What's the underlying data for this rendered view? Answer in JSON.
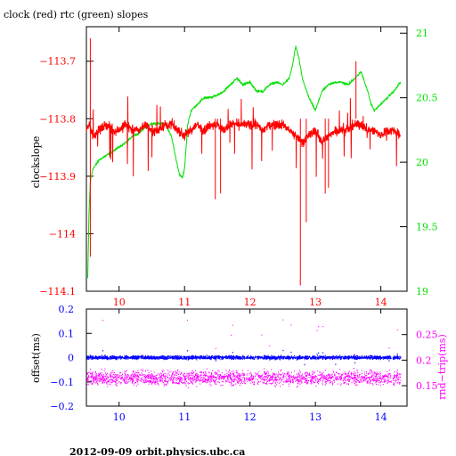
{
  "title": "clock (red) rtc (green) slopes",
  "footer": "2012-09-09  orbit.physics.ubc.ca",
  "colors": {
    "clock": "#ff0000",
    "rtc": "#00e000",
    "offset": "#0000ff",
    "rtt": "#ff00ff",
    "frame": "#000000"
  },
  "chart_data": [
    {
      "type": "line",
      "title": "clock (red) rtc (green) slopes",
      "ylabel": "clockslope",
      "xlim": [
        9.5,
        14.4
      ],
      "ylim": [
        -114.1,
        -113.64
      ],
      "y2lim": [
        19.0,
        21.05
      ],
      "x_ticks": [
        "10",
        "11",
        "12",
        "13",
        "14"
      ],
      "y_ticks": [
        "-113.7",
        "-113.8",
        "-113.9",
        "-114",
        "-114.1"
      ],
      "y2_ticks": [
        "21",
        "20.5",
        "20",
        "19.5",
        "19"
      ],
      "series": [
        {
          "name": "clock",
          "axis": "left",
          "x": [
            9.5,
            9.55,
            9.6,
            9.7,
            9.8,
            9.9,
            10.0,
            10.1,
            10.2,
            10.3,
            10.4,
            10.5,
            10.6,
            10.7,
            10.8,
            10.9,
            11.0,
            11.1,
            11.2,
            11.3,
            11.4,
            11.5,
            11.6,
            11.7,
            11.8,
            11.9,
            12.0,
            12.1,
            12.2,
            12.3,
            12.4,
            12.5,
            12.6,
            12.7,
            12.8,
            12.9,
            13.0,
            13.1,
            13.2,
            13.3,
            13.4,
            13.5,
            13.6,
            13.7,
            13.8,
            13.9,
            14.0,
            14.1,
            14.2,
            14.3
          ],
          "y": [
            -113.82,
            -113.81,
            -113.83,
            -113.82,
            -113.81,
            -113.82,
            -113.82,
            -113.81,
            -113.82,
            -113.82,
            -113.81,
            -113.82,
            -113.82,
            -113.81,
            -113.81,
            -113.82,
            -113.83,
            -113.82,
            -113.81,
            -113.82,
            -113.81,
            -113.81,
            -113.82,
            -113.81,
            -113.81,
            -113.81,
            -113.81,
            -113.81,
            -113.82,
            -113.81,
            -113.81,
            -113.81,
            -113.82,
            -113.83,
            -113.84,
            -113.83,
            -113.82,
            -113.84,
            -113.83,
            -113.82,
            -113.82,
            -113.82,
            -113.81,
            -113.81,
            -113.82,
            -113.82,
            -113.83,
            -113.82,
            -113.82,
            -113.83
          ]
        },
        {
          "name": "rtc",
          "axis": "right",
          "x": [
            9.52,
            9.54,
            9.56,
            9.6,
            9.7,
            9.8,
            9.9,
            10.0,
            10.1,
            10.2,
            10.3,
            10.4,
            10.5,
            10.6,
            10.7,
            10.8,
            10.9,
            10.93,
            10.97,
            11.0,
            11.05,
            11.1,
            11.2,
            11.3,
            11.4,
            11.5,
            11.6,
            11.7,
            11.8,
            11.9,
            12.0,
            12.1,
            12.2,
            12.3,
            12.4,
            12.5,
            12.6,
            12.65,
            12.7,
            12.75,
            12.8,
            12.9,
            13.0,
            13.1,
            13.2,
            13.3,
            13.4,
            13.5,
            13.6,
            13.7,
            13.8,
            13.85,
            13.9,
            14.0,
            14.1,
            14.2,
            14.3
          ],
          "y": [
            19.1,
            19.6,
            19.85,
            19.95,
            20.02,
            20.05,
            20.08,
            20.12,
            20.15,
            20.2,
            20.22,
            20.27,
            20.3,
            20.3,
            20.3,
            20.2,
            19.95,
            19.9,
            19.88,
            19.95,
            20.3,
            20.4,
            20.45,
            20.5,
            20.5,
            20.52,
            20.55,
            20.6,
            20.65,
            20.6,
            20.62,
            20.55,
            20.55,
            20.6,
            20.62,
            20.6,
            20.65,
            20.75,
            20.9,
            20.8,
            20.65,
            20.5,
            20.4,
            20.55,
            20.6,
            20.62,
            20.62,
            20.6,
            20.65,
            20.7,
            20.55,
            20.45,
            20.4,
            20.45,
            20.5,
            20.55,
            20.62
          ]
        }
      ]
    },
    {
      "type": "scatter",
      "ylabel": "offset(ms)",
      "y2label": "rnd−trip(ms)",
      "xlim": [
        9.5,
        14.4
      ],
      "ylim": [
        -0.2,
        0.2
      ],
      "y2lim": [
        0.11,
        0.3
      ],
      "x_ticks": [
        "10",
        "11",
        "12",
        "13",
        "14"
      ],
      "y_ticks": [
        "0.2",
        "0.1",
        "0",
        "-0.1",
        "-0.2"
      ],
      "y2_ticks": [
        "0.25",
        "0.2",
        "0.15"
      ],
      "series": [
        {
          "name": "offset",
          "axis": "left",
          "center": 0.0,
          "spread": 0.01
        },
        {
          "name": "rnd-trip",
          "axis": "right",
          "center": 0.165,
          "spread": 0.02
        }
      ]
    }
  ]
}
